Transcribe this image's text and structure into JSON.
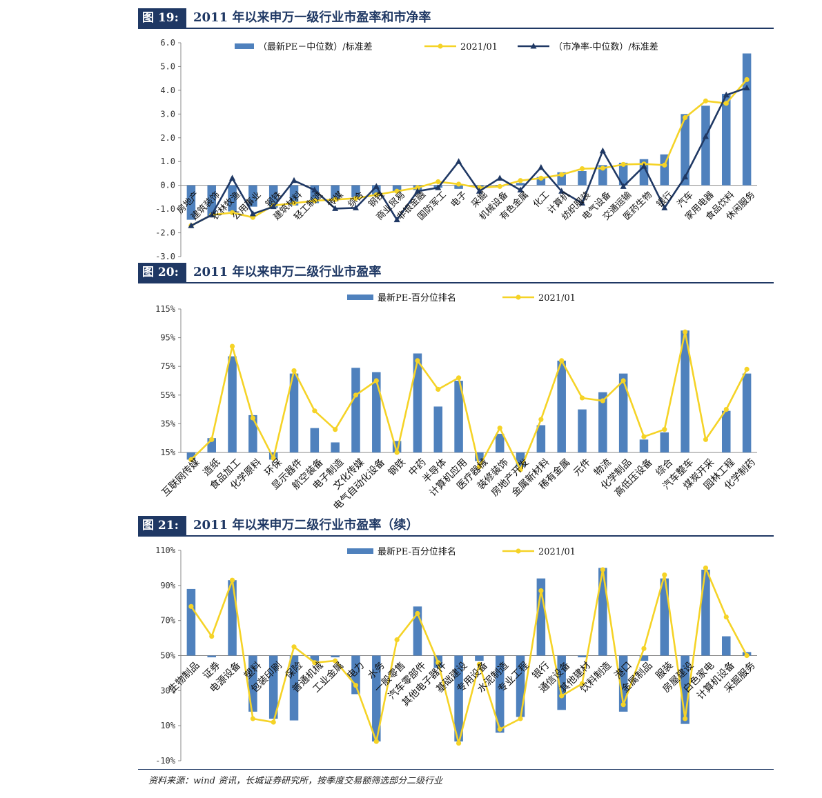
{
  "colors": {
    "bar": "#4f81bd",
    "line_yellow": "#f5d327",
    "line_navy": "#1f3864",
    "header": "#1f3864"
  },
  "figures": [
    {
      "tag": "图 19:",
      "title": "2011 年以来申万一级行业市盈率和市净率"
    },
    {
      "tag": "图 20:",
      "title": "2011 年以来申万二级行业市盈率"
    },
    {
      "tag": "图 21:",
      "title": "2011 年以来申万二级行业市盈率（续）"
    }
  ],
  "source": "资料来源：wind 资讯，长城证券研究所，按季度交易额筛选部分二级行业",
  "chart_data": [
    {
      "type": "bar",
      "categories": [
        "房地产",
        "建筑装饰",
        "农林牧渔",
        "公用事业",
        "钢铁",
        "建筑材料",
        "轻工制造",
        "传媒",
        "综合",
        "钢铁",
        "商业贸易",
        "非银金融",
        "国防军工",
        "电子",
        "采掘",
        "机械设备",
        "有色金属",
        "化工",
        "计算机",
        "纺织服装",
        "电气设备",
        "交通运输",
        "医药生物",
        "银行",
        "汽车",
        "家用电器",
        "食品饮料",
        "休闲服务"
      ],
      "series": [
        {
          "name": "（最新PE－中位数）/标准差",
          "type": "bar",
          "values": [
            -1.45,
            -1.3,
            -1.1,
            -0.9,
            -0.95,
            -0.85,
            -0.75,
            -0.6,
            -0.5,
            -0.45,
            -0.3,
            -0.2,
            -0.1,
            -0.15,
            -0.1,
            -0.05,
            0.1,
            0.35,
            0.55,
            0.6,
            0.85,
            0.95,
            1.1,
            1.3,
            3.0,
            3.35,
            3.85,
            5.55
          ]
        },
        {
          "name": "2021/01",
          "type": "line",
          "values": [
            -1.7,
            -1.25,
            -1.15,
            -1.35,
            -0.85,
            -0.75,
            -0.65,
            -0.6,
            -0.55,
            -0.4,
            -0.25,
            -0.1,
            0.15,
            0.05,
            -0.1,
            -0.05,
            0.2,
            0.3,
            0.45,
            0.7,
            0.72,
            0.88,
            0.9,
            0.85,
            2.85,
            3.55,
            3.45,
            4.45
          ]
        },
        {
          "name": "（市净率-中位数）/标准差",
          "type": "line",
          "values": [
            -1.7,
            -1.25,
            0.3,
            -1.2,
            -0.9,
            0.2,
            -0.2,
            -0.98,
            -0.95,
            -0.05,
            -1.45,
            -0.25,
            -0.1,
            1.0,
            -0.25,
            0.3,
            -0.2,
            0.75,
            -0.25,
            -0.75,
            1.45,
            -0.05,
            0.8,
            -0.95,
            0.35,
            2.05,
            3.8,
            4.1
          ]
        }
      ],
      "ylim": [
        -3.0,
        6.0
      ],
      "yticks": [
        "-3.0",
        "-2.0",
        "-1.0",
        "0.0",
        "1.0",
        "2.0",
        "3.0",
        "4.0",
        "5.0",
        "6.0"
      ],
      "legend": "top"
    },
    {
      "type": "bar",
      "categories": [
        "互联网传媒",
        "造纸",
        "食品加工",
        "化学原料",
        "环保",
        "显示器件",
        "航空装备",
        "电子制造",
        "文化传媒",
        "电气自动化设备",
        "钢铁",
        "中药",
        "半导体",
        "计算机应用",
        "医疗器械",
        "装修装饰",
        "房地产开发",
        "金属新材料",
        "稀有金属",
        "元件",
        "物流",
        "化学制品",
        "高低压设备",
        "综合",
        "汽车整车",
        "煤炭开采",
        "园林工程",
        "化学制药"
      ],
      "series": [
        {
          "name": "最新PE-百分位排名",
          "type": "bar",
          "values": [
            0.1,
            0.25,
            0.82,
            0.41,
            0.1,
            0.7,
            0.32,
            0.22,
            0.74,
            0.71,
            0.23,
            0.84,
            0.47,
            0.65,
            0.09,
            0.28,
            0.05,
            0.34,
            0.79,
            0.45,
            0.57,
            0.7,
            0.24,
            0.29,
            1.0,
            0.15,
            0.44,
            0.7
          ]
        },
        {
          "name": "2021/01",
          "type": "line",
          "values": [
            0.1,
            0.24,
            0.89,
            0.39,
            0.11,
            0.72,
            0.44,
            0.31,
            0.55,
            0.65,
            0.15,
            0.79,
            0.59,
            0.67,
            0.05,
            0.32,
            0.03,
            0.38,
            0.79,
            0.53,
            0.51,
            0.65,
            0.26,
            0.31,
            0.99,
            0.24,
            0.45,
            0.73
          ]
        }
      ],
      "ylim": [
        0.15,
        1.15
      ],
      "yticks": [
        "15%",
        "35%",
        "55%",
        "75%",
        "95%",
        "115%"
      ],
      "legend": "top"
    },
    {
      "type": "bar",
      "categories": [
        "生物制品",
        "证券",
        "电源设备",
        "塑料",
        "包装印刷",
        "保险",
        "普通机械",
        "工业金属",
        "电力",
        "水务",
        "一般零售",
        "汽车零部件",
        "其他电子器件",
        "基础建设",
        "专用设备",
        "水泥制造",
        "专业工程",
        "银行",
        "通信设备",
        "其他建材",
        "饮料制造",
        "港口",
        "金属制品",
        "服装",
        "房屋建设",
        "白色家电",
        "计算机设备",
        "采掘服务"
      ],
      "series": [
        {
          "name": "最新PE-百分位排名",
          "type": "bar",
          "values": [
            0.88,
            0.49,
            0.93,
            0.18,
            0.14,
            0.13,
            0.47,
            0.49,
            0.28,
            0.01,
            0.5,
            0.78,
            0.43,
            0.01,
            0.47,
            0.06,
            0.15,
            0.94,
            0.19,
            0.49,
            1.0,
            0.18,
            0.47,
            0.94,
            0.11,
            0.99,
            0.61,
            0.52
          ]
        },
        {
          "name": "2021/01",
          "type": "line",
          "values": [
            0.78,
            0.61,
            0.93,
            0.14,
            0.12,
            0.55,
            0.46,
            0.47,
            0.33,
            0.01,
            0.59,
            0.74,
            0.46,
            0.0,
            0.45,
            0.08,
            0.14,
            0.87,
            0.27,
            0.34,
            0.99,
            0.22,
            0.54,
            0.96,
            0.14,
            1.0,
            0.72,
            0.5
          ]
        }
      ],
      "ylim": [
        -0.1,
        1.1
      ],
      "yticks": [
        "-10%",
        "10%",
        "30%",
        "50%",
        "70%",
        "90%",
        "110%"
      ],
      "legend": "top"
    }
  ]
}
